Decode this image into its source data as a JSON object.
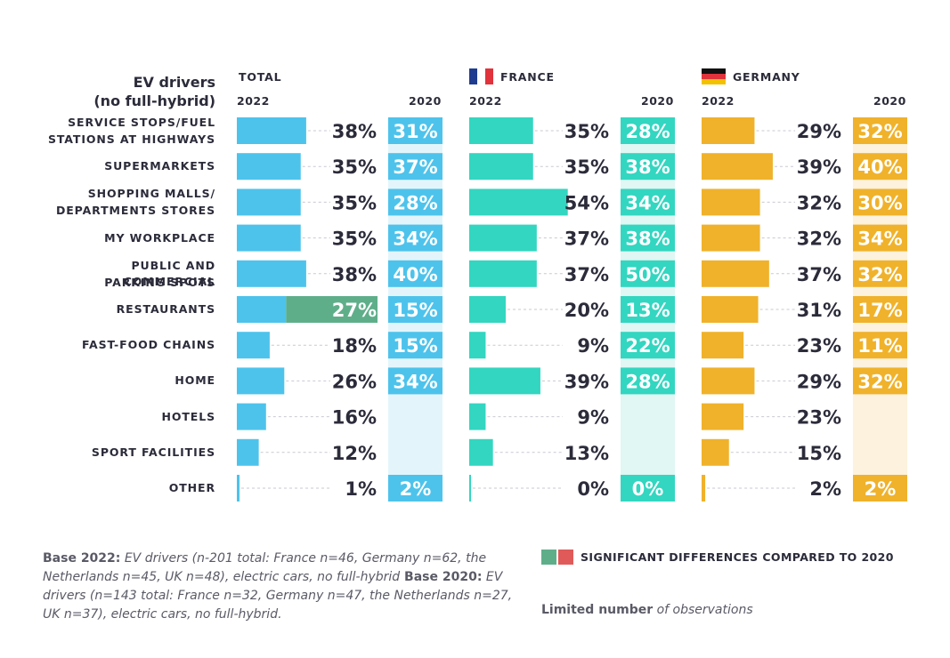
{
  "header": {
    "title_line1": "EV drivers",
    "title_line2": "(no full-hybrid)",
    "year_2022": "2022",
    "year_2020": "2020"
  },
  "colors": {
    "total": "#4dc3ec",
    "total_2020": "#4dc3ec",
    "total_bg": "#e3f5fb",
    "france": "#33d6c0",
    "france_bg": "#e0f7f3",
    "germany": "#f0b22b",
    "germany_bg": "#fcf2dd",
    "sig_green": "#5fae8a",
    "sig_red": "#e05a5a",
    "flag_blue": "#1f3c8f",
    "flag_red": "#e0333c",
    "flag_black": "#111111",
    "flag_gold": "#f2c200"
  },
  "categories": [
    [
      "SERVICE STOPS/FUEL",
      "STATIONS AT HIGHWAYS"
    ],
    [
      "SUPERMARKETS"
    ],
    [
      "SHOPPING MALLS/",
      "DEPARTMENTS STORES"
    ],
    [
      "MY WORKPLACE"
    ],
    [
      "PUBLIC AND COMMERCIAL",
      "PARKING SPOTS"
    ],
    [
      "RESTAURANTS"
    ],
    [
      "FAST-FOOD CHAINS"
    ],
    [
      "HOME"
    ],
    [
      "HOTELS"
    ],
    [
      "SPORT FACILITIES"
    ],
    [
      "OTHER"
    ]
  ],
  "chart_data": {
    "type": "bar",
    "title": "EV drivers (no full-hybrid)",
    "categories": [
      "SERVICE STOPS/FUEL STATIONS AT HIGHWAYS",
      "SUPERMARKETS",
      "SHOPPING MALLS/ DEPARTMENTS STORES",
      "MY WORKPLACE",
      "PUBLIC AND COMMERCIAL PARKING SPOTS",
      "RESTAURANTS",
      "FAST-FOOD CHAINS",
      "HOME",
      "HOTELS",
      "SPORT FACILITIES",
      "OTHER"
    ],
    "unit": "%",
    "panels": [
      {
        "name": "TOTAL",
        "flag": "",
        "values_2022": [
          38,
          35,
          35,
          35,
          38,
          27,
          18,
          26,
          16,
          12,
          1
        ],
        "values_2020": [
          31,
          37,
          28,
          34,
          40,
          15,
          15,
          34,
          null,
          null,
          2
        ],
        "significant": [
          null,
          null,
          null,
          null,
          null,
          "up",
          null,
          null,
          null,
          null,
          null
        ]
      },
      {
        "name": "FRANCE",
        "flag": "france",
        "values_2022": [
          35,
          35,
          54,
          37,
          37,
          20,
          9,
          39,
          9,
          13,
          0
        ],
        "values_2020": [
          28,
          38,
          34,
          38,
          50,
          13,
          22,
          28,
          null,
          null,
          0
        ],
        "significant": [
          null,
          null,
          null,
          null,
          null,
          null,
          null,
          null,
          null,
          null,
          null
        ]
      },
      {
        "name": "GERMANY",
        "flag": "germany",
        "values_2022": [
          29,
          39,
          32,
          32,
          37,
          31,
          23,
          29,
          23,
          15,
          2
        ],
        "values_2020": [
          32,
          40,
          30,
          34,
          32,
          17,
          11,
          32,
          null,
          null,
          2
        ],
        "significant": [
          null,
          null,
          null,
          null,
          null,
          null,
          null,
          null,
          null,
          null,
          null
        ]
      }
    ]
  },
  "footnote": {
    "base2022_label": "Base 2022:",
    "base2022_text": " EV drivers (n-201 total: France n=46, Germany n=62, the Netherlands n=45, UK n=48), electric cars, no full-hybrid",
    "base2020_label": " Base 2020:",
    "base2020_text": " EV drivers (n=143 total: France n=32, Germany n=47, the Netherlands n=27, UK n=37), electric cars, no full-hybrid."
  },
  "legend": {
    "significant_label": "SIGNIFICANT DIFFERENCES COMPARED TO 2020",
    "limited_bold": "Limited number",
    "limited_rest": " of observations"
  }
}
